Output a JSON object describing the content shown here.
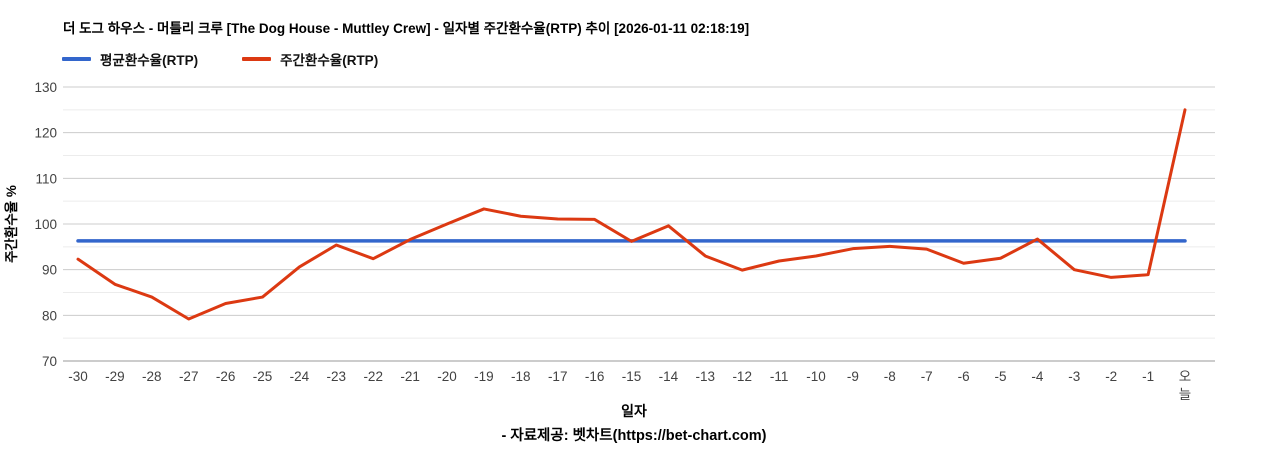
{
  "header": {
    "title": "더 도그 하우스 - 머틀리 크루 [The Dog House - Muttley Crew] - 일자별 주간환수율(RTP) 추이 [2026-01-11 02:18:19]"
  },
  "legend": {
    "items": [
      {
        "label": "평균환수율(RTP)",
        "color": "#3366cc"
      },
      {
        "label": "주간환수율(RTP)",
        "color": "#dc3912"
      }
    ]
  },
  "axes": {
    "y_title": "주간환수율 %",
    "x_title": "일자",
    "y_ticks": [
      70,
      80,
      90,
      100,
      110,
      120,
      130
    ]
  },
  "footer": {
    "credit": "- 자료제공: 벳차트(https://bet-chart.com)"
  },
  "colors": {
    "average_line": "#3366cc",
    "weekly_line": "#dc3912",
    "gridline_major": "#cccccc",
    "gridline_minor": "#ececec",
    "axis_baseline": "#9a9a9a",
    "tick_label": "#424242"
  },
  "chart_data": {
    "type": "line",
    "title": "더 도그 하우스 - 머틀리 크루 [The Dog House - Muttley Crew] - 일자별 주간환수율(RTP) 추이 [2026-01-11 02:18:19]",
    "xlabel": "일자",
    "ylabel": "주간환수율 %",
    "ylim": [
      70,
      130
    ],
    "y_tick_step": 10,
    "minor_grid_step": 5,
    "grid": true,
    "legend_position": "top",
    "categories": [
      "-30",
      "-29",
      "-28",
      "-27",
      "-26",
      "-25",
      "-24",
      "-23",
      "-22",
      "-21",
      "-20",
      "-19",
      "-18",
      "-17",
      "-16",
      "-15",
      "-14",
      "-13",
      "-12",
      "-11",
      "-10",
      "-9",
      "-8",
      "-7",
      "-6",
      "-5",
      "-4",
      "-3",
      "-2",
      "-1",
      "오늘"
    ],
    "series": [
      {
        "name": "평균환수율(RTP)",
        "color": "#3366cc",
        "values": [
          96.3,
          96.3,
          96.3,
          96.3,
          96.3,
          96.3,
          96.3,
          96.3,
          96.3,
          96.3,
          96.3,
          96.3,
          96.3,
          96.3,
          96.3,
          96.3,
          96.3,
          96.3,
          96.3,
          96.3,
          96.3,
          96.3,
          96.3,
          96.3,
          96.3,
          96.3,
          96.3,
          96.3,
          96.3,
          96.3,
          96.3
        ]
      },
      {
        "name": "주간환수율(RTP)",
        "color": "#dc3912",
        "values": [
          92.3,
          86.8,
          84.0,
          79.2,
          82.6,
          84.0,
          90.6,
          95.4,
          92.4,
          96.6,
          100.0,
          103.3,
          101.7,
          101.1,
          101.0,
          96.2,
          99.6,
          93.0,
          89.9,
          91.9,
          93.0,
          94.6,
          95.1,
          94.5,
          91.4,
          92.5,
          96.7,
          90.0,
          88.3,
          88.9,
          125.0
        ]
      }
    ]
  }
}
